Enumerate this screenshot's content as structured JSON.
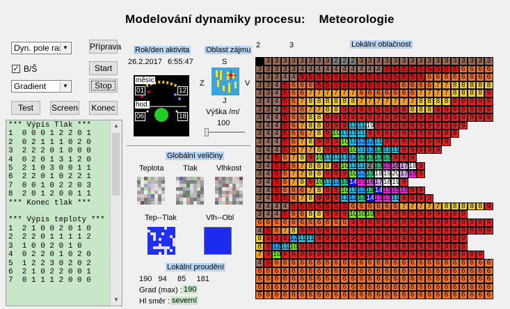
{
  "title": "Modelování dynamiky procesu:    Meteorologie",
  "controls": {
    "mode_select": "Dyn. pole rand",
    "bw_label": "B/Š",
    "bw_checked": "✓",
    "render_select": "Gradient",
    "btn_prepare": "Příprava",
    "btn_start": "Start",
    "btn_stop": "Stop",
    "btn_test": "Test",
    "btn_screen": "Screen",
    "btn_end": "Konec"
  },
  "listing": [
    "*** Výpis Tlak ***",
    "1  0 0 0 1 2 2 0 1",
    "2  0 2 1 1 1 0 2 0",
    "3  2 2 2 0 1 0 0 0",
    "4  0 2 0 1 3 1 2 0",
    "5  2 1 0 3 0 0 1 1",
    "6  2 2 0 1 0 2 2 1",
    "7  0 0 1 0 2 2 0 3",
    "8  2 0 1 2 0 0 1 1",
    "*** Konec tlak ***",
    "",
    "*** Výpis teploty ***",
    "1  2 1 0 0 2 0 1 0",
    "2  2 2 0 1 1 1 1 2",
    "3  1 0 0 2 0 1 0",
    "4  0 2 2 0 1 0 2 0",
    "5  1 2 2 3 0 2 0 2",
    "6  2 1 0 2 2 0 0 1",
    "7  0 1 1 1 2 0 0 0"
  ],
  "date_panel": {
    "label": "Rok/den aktivita",
    "date": "26.2.2017",
    "time": "6:55:47",
    "month_label": "měsíc",
    "month_start": "01",
    "month_end": "12",
    "hour_label": "hod.",
    "hour_start": "06",
    "hour_end": "18"
  },
  "area_panel": {
    "label": "Oblast zájmu",
    "north": "S",
    "south": "J",
    "west": "Z",
    "east": "V",
    "height_label": "Výška /m/",
    "height_value": "100",
    "slider_tick": "r"
  },
  "global": {
    "label": "Globální veličiny",
    "temp": "Teplota",
    "pressure": "Tlak",
    "humidity": "Vlhkost",
    "temp_pressure": "Tep--Tlak",
    "hum_cloud": "Vlh--Obl"
  },
  "local_flow": {
    "label": "Lokální proudění",
    "values": "190   94     85     181",
    "grad_label": "Grad (max) :",
    "grad_value": "190",
    "hl_label": "Hl směr :",
    "hl_value": "severní"
  },
  "cloud": {
    "label": "Lokální oblačnost",
    "left_num": "2",
    "right_num": "3",
    "rows": [
      "3333333332223333333333333333",
      "3333344444444445555555556666",
      "3334455555555555555566666666",
      "3345666555555555566667788888",
      "3345667777776666666777788889",
      "3445678888887777777888899999",
      "3345667788999999998889999999",
      "3445668899999999999999999999",
      "3445678899911111999999999999",
      "3445667891011111199999999999",
      "3445678999101112121199999999",
      "3445677899910111213111199999",
      "3456789101111111213131313999",
      "3455678889101111213151617189",
      "3456778899910121318192017159",
      "3456789101112131415161718199",
      "3456667899101112131415151599",
      "3455678999111213141515119999",
      "4444555555566666677777888889",
      "3445668899910101099999999999",
      "6666666666699999999999999999",
      "4567899999999999999999999999",
      "8999121111999999999999999999",
      "8912111099999999999999999999",
      "7910999999999999999999999999",
      "4566666666666666666666666666",
      "6666666666666666666666666666",
      "6666666666666666666666666666",
      "6666666666666666666666666666",
      "6666666666666666666666666666"
    ]
  }
}
